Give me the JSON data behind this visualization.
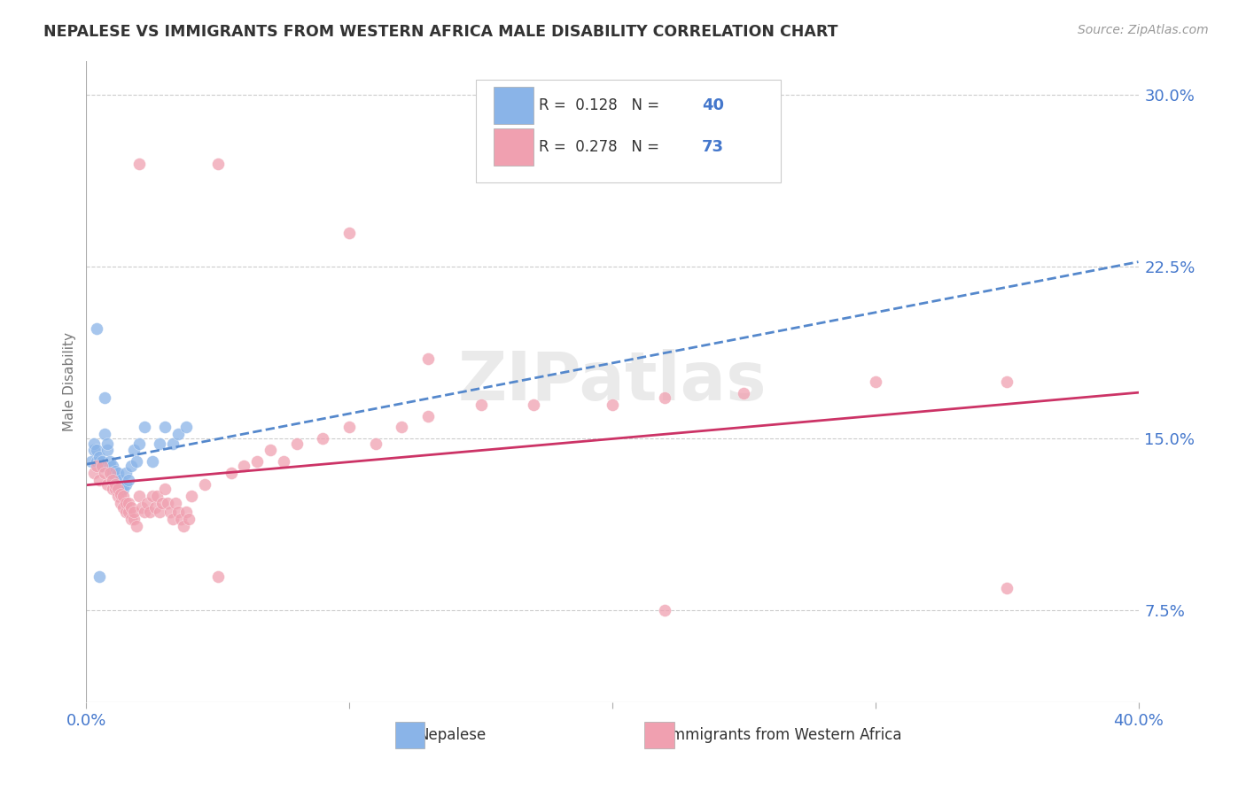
{
  "title": "NEPALESE VS IMMIGRANTS FROM WESTERN AFRICA MALE DISABILITY CORRELATION CHART",
  "source": "Source: ZipAtlas.com",
  "ylabel": "Male Disability",
  "ytick_values": [
    0.075,
    0.15,
    0.225,
    0.3
  ],
  "xlim": [
    0.0,
    0.4
  ],
  "ylim": [
    0.035,
    0.315
  ],
  "legend1_R": "0.128",
  "legend1_N": "40",
  "legend2_R": "0.278",
  "legend2_N": "73",
  "blue_color": "#8ab4e8",
  "pink_color": "#f0a0b0",
  "blue_line_color": "#5588cc",
  "pink_line_color": "#cc3366",
  "watermark": "ZIPatlas",
  "nepalese_x": [
    0.002,
    0.003,
    0.003,
    0.004,
    0.004,
    0.005,
    0.005,
    0.006,
    0.006,
    0.007,
    0.007,
    0.008,
    0.008,
    0.009,
    0.009,
    0.01,
    0.01,
    0.011,
    0.011,
    0.012,
    0.012,
    0.013,
    0.013,
    0.014,
    0.015,
    0.015,
    0.016,
    0.017,
    0.018,
    0.019,
    0.02,
    0.022,
    0.025,
    0.028,
    0.03,
    0.033,
    0.035,
    0.038,
    0.004,
    0.005
  ],
  "nepalese_y": [
    0.14,
    0.145,
    0.148,
    0.14,
    0.145,
    0.14,
    0.142,
    0.138,
    0.14,
    0.168,
    0.152,
    0.145,
    0.148,
    0.138,
    0.14,
    0.135,
    0.138,
    0.133,
    0.136,
    0.13,
    0.135,
    0.128,
    0.132,
    0.128,
    0.13,
    0.135,
    0.132,
    0.138,
    0.145,
    0.14,
    0.148,
    0.155,
    0.14,
    0.148,
    0.155,
    0.148,
    0.152,
    0.155,
    0.198,
    0.09
  ],
  "western_africa_x": [
    0.003,
    0.004,
    0.005,
    0.006,
    0.007,
    0.008,
    0.009,
    0.01,
    0.01,
    0.011,
    0.011,
    0.012,
    0.012,
    0.013,
    0.013,
    0.014,
    0.014,
    0.015,
    0.015,
    0.016,
    0.016,
    0.017,
    0.017,
    0.018,
    0.018,
    0.019,
    0.02,
    0.021,
    0.022,
    0.023,
    0.024,
    0.025,
    0.026,
    0.027,
    0.028,
    0.029,
    0.03,
    0.031,
    0.032,
    0.033,
    0.034,
    0.035,
    0.036,
    0.037,
    0.038,
    0.039,
    0.04,
    0.045,
    0.05,
    0.055,
    0.06,
    0.065,
    0.07,
    0.075,
    0.08,
    0.09,
    0.1,
    0.11,
    0.12,
    0.13,
    0.15,
    0.17,
    0.2,
    0.22,
    0.25,
    0.3,
    0.35,
    0.02,
    0.05,
    0.1,
    0.13,
    0.22,
    0.35
  ],
  "western_africa_y": [
    0.135,
    0.138,
    0.132,
    0.138,
    0.135,
    0.13,
    0.135,
    0.128,
    0.132,
    0.128,
    0.13,
    0.125,
    0.128,
    0.122,
    0.126,
    0.12,
    0.125,
    0.118,
    0.122,
    0.118,
    0.122,
    0.115,
    0.12,
    0.115,
    0.118,
    0.112,
    0.125,
    0.12,
    0.118,
    0.122,
    0.118,
    0.125,
    0.12,
    0.125,
    0.118,
    0.122,
    0.128,
    0.122,
    0.118,
    0.115,
    0.122,
    0.118,
    0.115,
    0.112,
    0.118,
    0.115,
    0.125,
    0.13,
    0.09,
    0.135,
    0.138,
    0.14,
    0.145,
    0.14,
    0.148,
    0.15,
    0.155,
    0.148,
    0.155,
    0.16,
    0.165,
    0.165,
    0.165,
    0.168,
    0.17,
    0.175,
    0.175,
    0.27,
    0.27,
    0.24,
    0.185,
    0.075,
    0.085
  ]
}
